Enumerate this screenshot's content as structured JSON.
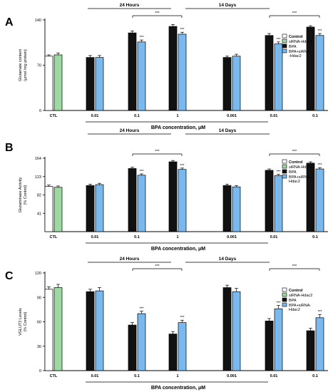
{
  "figure": {
    "colors": {
      "control": "#ffffff",
      "sirna": "#9ed9a4",
      "bpa": "#111111",
      "bpa_sirna": "#79b9ee"
    }
  },
  "chart_data": [
    {
      "panel": "A",
      "type": "bar",
      "ylabel": "Glutamate content\n(µmol /mg protein)",
      "xlabel": "BPA concentration, μM",
      "ylim": [
        0,
        140
      ],
      "yticks": [
        0,
        70,
        140
      ],
      "groups": [
        {
          "label": "CTL",
          "bars": [
            {
              "series": "Control",
              "value": 84,
              "err": 2
            },
            {
              "series": "siRNA-Hdac2",
              "value": 86,
              "err": 3
            }
          ]
        },
        {
          "label": "0.01",
          "bars": [
            {
              "series": "BPA",
              "value": 82,
              "err": 3
            },
            {
              "series": "BPA+siRNA-Hdac2",
              "value": 82,
              "err": 3
            }
          ]
        },
        {
          "label": "0.1",
          "bars": [
            {
              "series": "BPA",
              "value": 120,
              "err": 3,
              "sig": ""
            },
            {
              "series": "BPA+siRNA-Hdac2",
              "value": 106,
              "err": 3,
              "sig": "***"
            }
          ]
        },
        {
          "label": "1",
          "bars": [
            {
              "series": "BPA",
              "value": 130,
              "err": 3,
              "sig": ""
            },
            {
              "series": "BPA+siRNA-Hdac2",
              "value": 118,
              "err": 3,
              "sig": "***"
            }
          ]
        },
        {
          "label": "0.001",
          "bars": [
            {
              "series": "BPA",
              "value": 82,
              "err": 2
            },
            {
              "series": "BPA+siRNA-Hdac2",
              "value": 84,
              "err": 3
            }
          ]
        },
        {
          "label": "0.01",
          "bars": [
            {
              "series": "BPA",
              "value": 116,
              "err": 3
            },
            {
              "series": "BPA+siRNA-Hdac2",
              "value": 103,
              "err": 3,
              "sig": "***"
            }
          ]
        },
        {
          "label": "0.1",
          "bars": [
            {
              "series": "BPA",
              "value": 129,
              "err": 2
            },
            {
              "series": "BPA+siRNA-Hdac2",
              "value": 116,
              "err": 3,
              "sig": "***"
            }
          ]
        }
      ],
      "time_labels": [
        "24 Hours",
        "14 Days"
      ],
      "comparison_labels": [
        "***",
        "***"
      ],
      "legend": [
        "Control",
        "siRNA-Hdac2",
        "BPA",
        "BPA+siRNA\n-Hdac2"
      ]
    },
    {
      "panel": "B",
      "type": "bar",
      "ylabel": "Glutaminase Activity\n(% Control)",
      "xlabel": "BPA concentration, μM",
      "ylim": [
        0,
        164
      ],
      "yticks": [
        41,
        82,
        123,
        164
      ],
      "groups": [
        {
          "label": "CTL",
          "bars": [
            {
              "series": "Control",
              "value": 101,
              "err": 3
            },
            {
              "series": "siRNA-Hdac2",
              "value": 99,
              "err": 3
            }
          ]
        },
        {
          "label": "0.01",
          "bars": [
            {
              "series": "BPA",
              "value": 103,
              "err": 3
            },
            {
              "series": "BPA+siRNA-Hdac2",
              "value": 105,
              "err": 3
            }
          ]
        },
        {
          "label": "0.1",
          "bars": [
            {
              "series": "BPA",
              "value": 141,
              "err": 3
            },
            {
              "series": "BPA+siRNA-Hdac2",
              "value": 126,
              "err": 3,
              "sig": "***"
            }
          ]
        },
        {
          "label": "1",
          "bars": [
            {
              "series": "BPA",
              "value": 156,
              "err": 3
            },
            {
              "series": "BPA+siRNA-Hdac2",
              "value": 139,
              "err": 3,
              "sig": "***"
            }
          ]
        },
        {
          "label": "0.001",
          "bars": [
            {
              "series": "BPA",
              "value": 103,
              "err": 3
            },
            {
              "series": "BPA+siRNA-Hdac2",
              "value": 100,
              "err": 3
            }
          ]
        },
        {
          "label": "0.01",
          "bars": [
            {
              "series": "BPA",
              "value": 137,
              "err": 3
            },
            {
              "series": "BPA+siRNA-Hdac2",
              "value": 125,
              "err": 3,
              "sig": "***"
            }
          ]
        },
        {
          "label": "0.1",
          "bars": [
            {
              "series": "BPA",
              "value": 153,
              "err": 3
            },
            {
              "series": "BPA+siRNA-Hdac2",
              "value": 140,
              "err": 3,
              "sig": "***"
            }
          ]
        }
      ],
      "time_labels": [
        "24 Hours",
        "14 Days"
      ],
      "comparison_labels": [
        "***",
        "***"
      ],
      "legend": [
        "Control",
        "siRNA-Hdac2",
        "BPA",
        "BPA+siRNA-\nHdac2"
      ]
    },
    {
      "panel": "C",
      "type": "bar",
      "ylabel": "VGLUT2 Levels\n(% Control)",
      "xlabel": "BPA concentration, μM",
      "ylim": [
        0,
        120
      ],
      "yticks": [
        0,
        30,
        60,
        90,
        120
      ],
      "groups": [
        {
          "label": "CTL",
          "bars": [
            {
              "series": "Control",
              "value": 100,
              "err": 3
            },
            {
              "series": "siRNA-Hdac2",
              "value": 102,
              "err": 4
            }
          ]
        },
        {
          "label": "0.01",
          "bars": [
            {
              "series": "BPA",
              "value": 97,
              "err": 3
            },
            {
              "series": "BPA+siRNA-Hdac2",
              "value": 98,
              "err": 4
            }
          ]
        },
        {
          "label": "0.1",
          "bars": [
            {
              "series": "BPA",
              "value": 56,
              "err": 3
            },
            {
              "series": "BPA+siRNA-Hdac2",
              "value": 70,
              "err": 3,
              "sig": "***"
            }
          ]
        },
        {
          "label": "1",
          "bars": [
            {
              "series": "BPA",
              "value": 45,
              "err": 3
            },
            {
              "series": "BPA+siRNA-Hdac2",
              "value": 59,
              "err": 3,
              "sig": "***"
            }
          ]
        },
        {
          "label": "0.001",
          "bars": [
            {
              "series": "BPA",
              "value": 102,
              "err": 3
            },
            {
              "series": "BPA+siRNA-Hdac2",
              "value": 97,
              "err": 4
            }
          ]
        },
        {
          "label": "0.01",
          "bars": [
            {
              "series": "BPA",
              "value": 61,
              "err": 3
            },
            {
              "series": "BPA+siRNA-Hdac2",
              "value": 76,
              "err": 4,
              "sig": "***"
            }
          ]
        },
        {
          "label": "0.1",
          "bars": [
            {
              "series": "BPA",
              "value": 49,
              "err": 3
            },
            {
              "series": "BPA+siRNA-Hdac2",
              "value": 65,
              "err": 4,
              "sig": "***"
            }
          ]
        }
      ],
      "time_labels": [
        "24 Hours",
        "14 Days"
      ],
      "comparison_labels": [
        "***",
        "***"
      ],
      "legend": [
        "Control",
        "siRNA-Hdac2",
        "BPA",
        "BPA+siRNA-\nHdac2"
      ]
    }
  ]
}
